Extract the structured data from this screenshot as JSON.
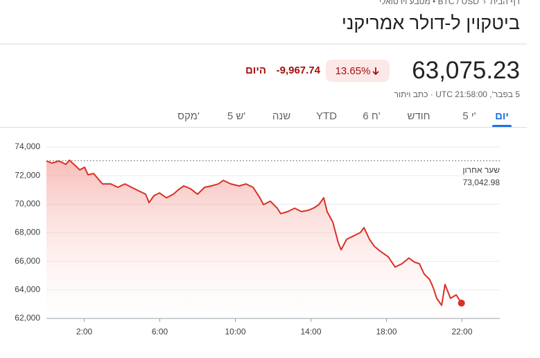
{
  "header": {
    "breadcrumb": [
      "דף הבית",
      "BTC / USD",
      "מטבע וירטואלי"
    ],
    "title": "ביטקוין ל-דולר אמריקני"
  },
  "quote": {
    "price": "63,075.23",
    "change_percent": "13.65%",
    "change": "-9,967.74",
    "period": "היום",
    "timestamp": "5 בפבר', UTC 21:58:00",
    "disclaimer": "כתב ויתור"
  },
  "tabs": [
    "יום",
    "5 י'",
    "חודש",
    "6 ח'",
    "YTD",
    "שנה",
    "5 ש'",
    "מקס'"
  ],
  "chart_data": {
    "type": "line",
    "color": "#d93025",
    "x": [
      0,
      0.29,
      0.66,
      1.03,
      1.21,
      1.58,
      1.76,
      2.02,
      2.2,
      2.5,
      2.68,
      2.97,
      3.41,
      3.78,
      4.15,
      4.51,
      4.88,
      5.25,
      5.43,
      5.69,
      5.98,
      6.35,
      6.72,
      7.01,
      7.27,
      7.63,
      8.0,
      8.37,
      8.73,
      9.1,
      9.36,
      9.76,
      10.2,
      10.57,
      10.94,
      11.3,
      11.49,
      11.85,
      12.22,
      12.4,
      12.77,
      13.14,
      13.5,
      13.87,
      14.13,
      14.42,
      14.68,
      14.86,
      15.16,
      15.45,
      15.6,
      15.89,
      16.26,
      16.62,
      16.81,
      17.1,
      17.36,
      17.72,
      18.09,
      18.46,
      18.83,
      19.19,
      19.49,
      19.74,
      20.0,
      20.29,
      20.48,
      20.66,
      20.92,
      21.1,
      21.39,
      21.69,
      21.97
    ],
    "values": [
      73030,
      72880,
      73030,
      72790,
      73080,
      72640,
      72400,
      72590,
      72060,
      72150,
      71860,
      71420,
      71420,
      71180,
      71420,
      71180,
      70940,
      70700,
      70110,
      70600,
      70790,
      70450,
      70700,
      71040,
      71280,
      71080,
      70700,
      71180,
      71280,
      71420,
      71670,
      71420,
      71280,
      71420,
      71180,
      70450,
      69970,
      70210,
      69720,
      69340,
      69480,
      69720,
      69480,
      69580,
      69720,
      69970,
      70450,
      69480,
      68750,
      67300,
      66810,
      67540,
      67780,
      68020,
      68360,
      67540,
      67050,
      66660,
      66320,
      65600,
      65840,
      66230,
      65940,
      65840,
      65110,
      64720,
      64140,
      63410,
      62920,
      64380,
      63410,
      63650,
      63075.23
    ],
    "xlim": [
      0,
      24
    ],
    "xticks": [
      {
        "value": 2,
        "label": "2:00"
      },
      {
        "value": 6,
        "label": "6:00"
      },
      {
        "value": 10,
        "label": "10:00"
      },
      {
        "value": 14,
        "label": "14:00"
      },
      {
        "value": 18,
        "label": "18:00"
      },
      {
        "value": 22,
        "label": "22:00"
      }
    ],
    "ylim": [
      62000,
      74000
    ],
    "yticks": [
      {
        "value": 62000,
        "label": "62,000"
      },
      {
        "value": 64000,
        "label": "64,000"
      },
      {
        "value": 66000,
        "label": "66,000"
      },
      {
        "value": 68000,
        "label": "68,000"
      },
      {
        "value": 70000,
        "label": "70,000"
      },
      {
        "value": 72000,
        "label": "72,000"
      },
      {
        "value": 74000,
        "label": "74,000"
      }
    ],
    "grid": true,
    "reference_line": {
      "name": "שער אחרון",
      "value": 73042.98,
      "label": "73,042.98"
    }
  }
}
